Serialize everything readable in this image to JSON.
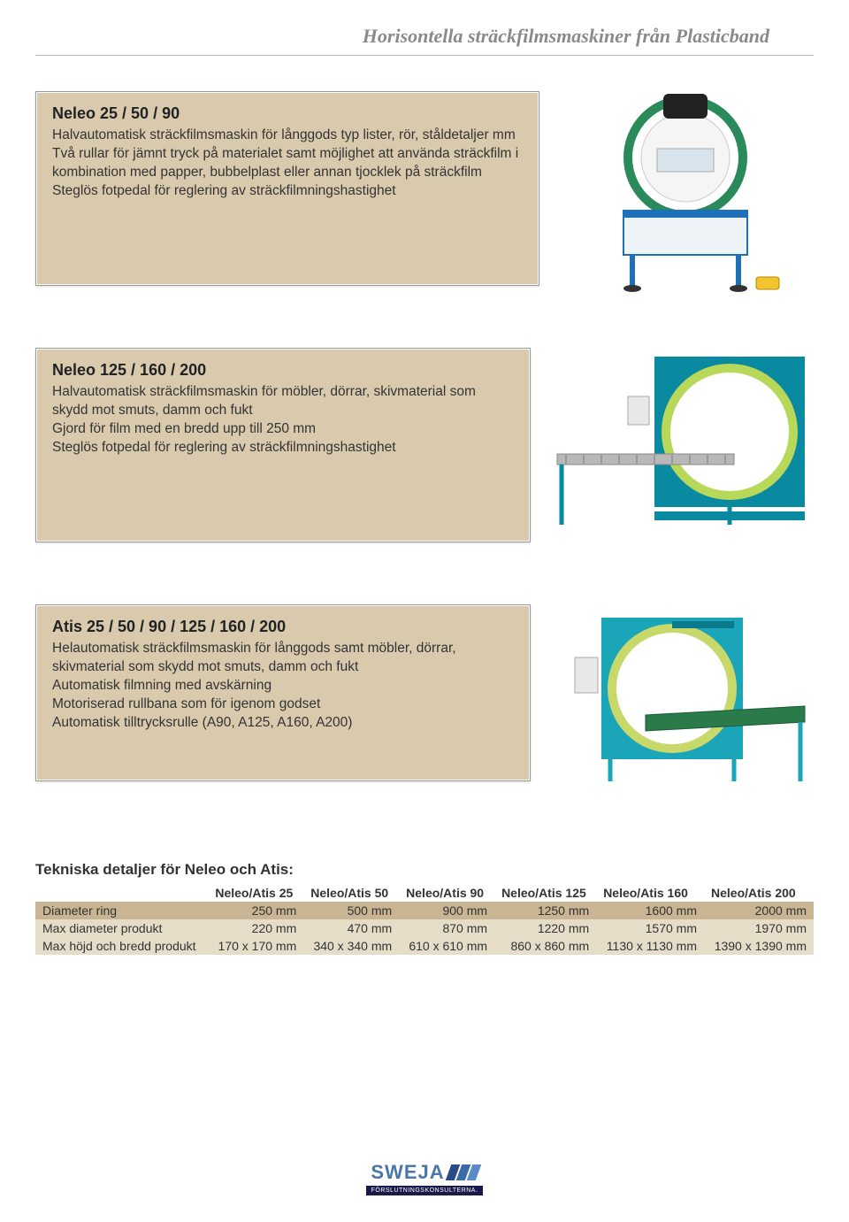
{
  "page": {
    "title": "Horisontella sträckfilmsmaskiner från Plasticband"
  },
  "products": [
    {
      "title": "Neleo 25 / 50 / 90",
      "lines": [
        "Halvautomatisk sträckfilmsmaskin för långgods typ lister, rör, ståldetaljer mm",
        "Två rullar för jämnt tryck på materialet samt möjlighet att använda sträckfilm i kombination med papper, bubbelplast eller annan tjocklek på sträckfilm",
        "Steglös fotpedal för reglering av sträckfilmningshastighet"
      ],
      "image_colors": {
        "frame": "#1e70b8",
        "ring": "#2a8a5a",
        "hood": "#222222",
        "pedal": "#f4c430"
      }
    },
    {
      "title": "Neleo 125 / 160 / 200",
      "lines": [
        "Halvautomatisk sträckfilmsmaskin för möbler, dörrar, skivmaterial som skydd mot smuts, damm och fukt",
        "Gjord för film med en bredd upp till 250 mm",
        "Steglös fotpedal för reglering av sträckfilmningshastighet"
      ],
      "image_colors": {
        "frame": "#0a8aa0",
        "ring": "#b8d85a",
        "conveyor": "#b8b8b8",
        "panel": "#e8e8e8"
      }
    },
    {
      "title": "Atis 25 / 50 / 90 / 125 / 160 / 200",
      "lines": [
        "Helautomatisk sträckfilmsmaskin för långgods samt möbler, dörrar, skivmaterial som skydd mot smuts, damm och fukt",
        "Automatisk filmning med avskärning",
        "Motoriserad rullbana som för igenom godset",
        "Automatisk tilltrycksrulle (A90, A125, A160, A200)"
      ],
      "image_colors": {
        "frame": "#1aa5b8",
        "ring": "#c8d86a",
        "conveyor": "#2a7a4a",
        "panel": "#e8e8e8"
      }
    }
  ],
  "tech": {
    "title": "Tekniska detaljer för Neleo och Atis:",
    "columns": [
      "",
      "Neleo/Atis 25",
      "Neleo/Atis 50",
      "Neleo/Atis 90",
      "Neleo/Atis 125",
      "Neleo/Atis 160",
      "Neleo/Atis 200"
    ],
    "rows": [
      {
        "label": "Diameter ring",
        "values": [
          "250 mm",
          "500 mm",
          "900 mm",
          "1250 mm",
          "1600 mm",
          "2000 mm"
        ],
        "shade": "dark"
      },
      {
        "label": "Max diameter produkt",
        "values": [
          "220 mm",
          "470 mm",
          "870 mm",
          "1220 mm",
          "1570 mm",
          "1970 mm"
        ],
        "shade": "light"
      },
      {
        "label": "Max höjd och bredd produkt",
        "values": [
          "170 x 170 mm",
          "340 x 340 mm",
          "610 x 610 mm",
          "860 x 860 mm",
          "1130 x 1130 mm",
          "1390 x 1390 mm"
        ],
        "shade": "light"
      }
    ],
    "row_colors": {
      "dark": "#c9b593",
      "light": "#e6ddc9"
    }
  },
  "footer": {
    "brand": "SWEJA",
    "tagline": "FÖRSLUTNINGSKONSULTERNA.",
    "bar_colors": [
      "#2a4a8a",
      "#3a6aa8",
      "#5a8ac8"
    ]
  },
  "colors": {
    "box_bg": "#d9caae",
    "title_gray": "#8a8a8a"
  }
}
